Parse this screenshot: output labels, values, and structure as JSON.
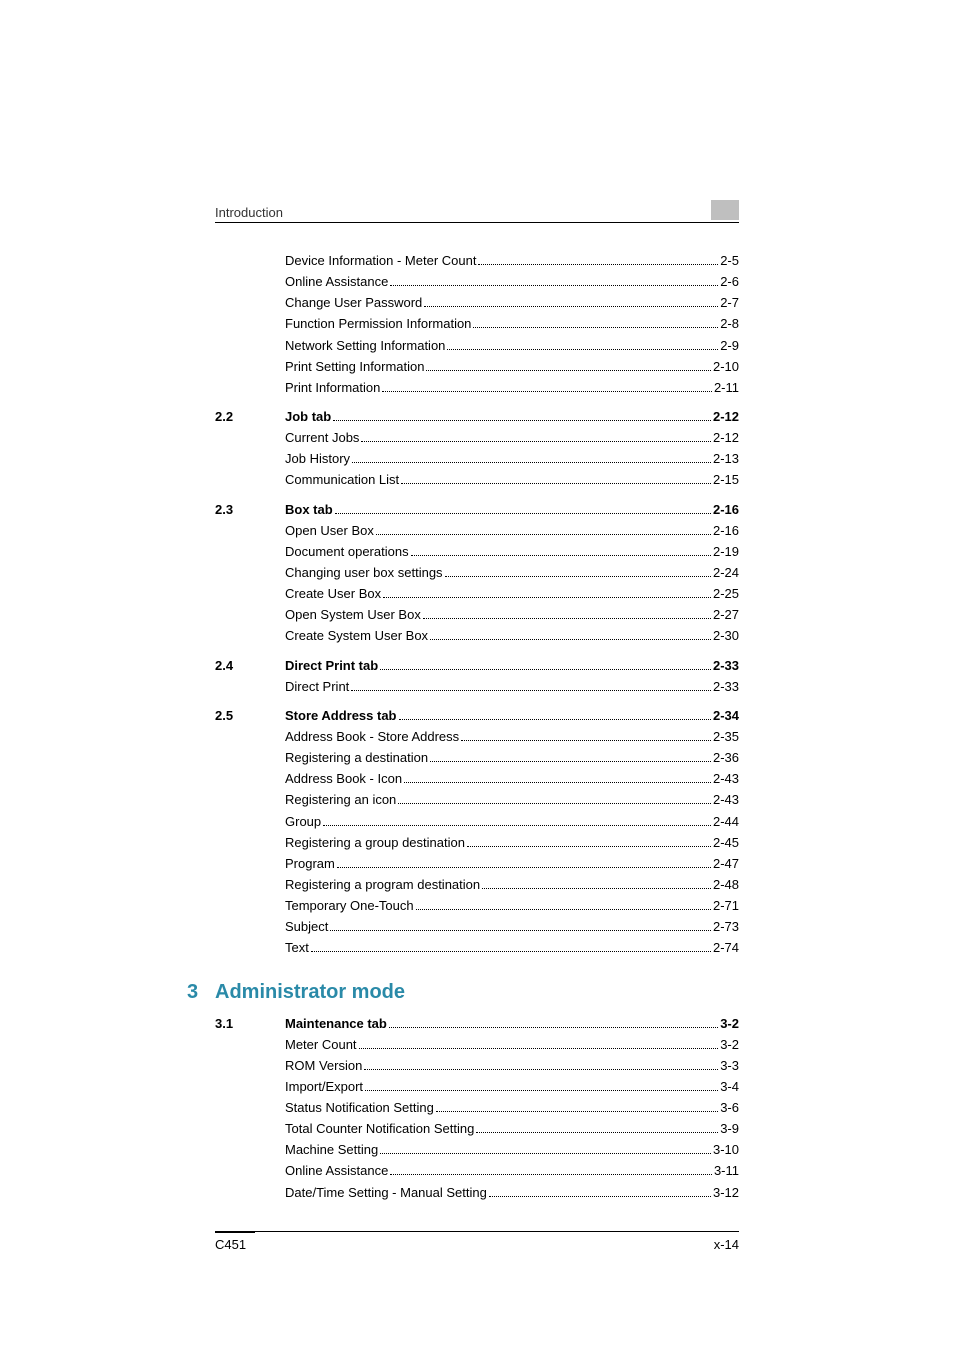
{
  "header": {
    "title": "Introduction"
  },
  "footer": {
    "left": "C451",
    "right": "x-14"
  },
  "chapter": {
    "number": "3",
    "title": "Administrator mode"
  },
  "colors": {
    "header_block": "#bfbfbf",
    "chapter_color": "#2a8aa8",
    "text": "#000000",
    "bg": "#ffffff"
  },
  "fonts": {
    "body_size": 13,
    "chapter_size": 20
  },
  "groups": [
    {
      "section": "",
      "bold": false,
      "gap_before": false,
      "items": [
        {
          "label": "Device Information - Meter Count",
          "page": "2-5"
        },
        {
          "label": "Online Assistance",
          "page": "2-6"
        },
        {
          "label": "Change User Password",
          "page": "2-7"
        },
        {
          "label": "Function Permission Information",
          "page": "2-8"
        },
        {
          "label": "Network Setting Information",
          "page": "2-9"
        },
        {
          "label": "Print Setting Information",
          "page": "2-10"
        },
        {
          "label": "Print Information",
          "page": "2-11"
        }
      ]
    },
    {
      "section": "2.2",
      "bold": true,
      "gap_before": true,
      "head": {
        "label": "Job tab",
        "page": "2-12"
      },
      "items": [
        {
          "label": "Current Jobs",
          "page": "2-12"
        },
        {
          "label": "Job History",
          "page": "2-13"
        },
        {
          "label": "Communication List",
          "page": "2-15"
        }
      ]
    },
    {
      "section": "2.3",
      "bold": true,
      "gap_before": true,
      "head": {
        "label": "Box tab",
        "page": "2-16"
      },
      "items": [
        {
          "label": "Open User Box",
          "page": "2-16"
        },
        {
          "label": "Document operations",
          "page": "2-19"
        },
        {
          "label": "Changing user box settings",
          "page": "2-24"
        },
        {
          "label": "Create User Box",
          "page": "2-25"
        },
        {
          "label": "Open System User Box",
          "page": "2-27"
        },
        {
          "label": "Create System User Box",
          "page": "2-30"
        }
      ]
    },
    {
      "section": "2.4",
      "bold": true,
      "gap_before": true,
      "head": {
        "label": "Direct Print tab",
        "page": "2-33"
      },
      "items": [
        {
          "label": "Direct Print",
          "page": "2-33"
        }
      ]
    },
    {
      "section": "2.5",
      "bold": true,
      "gap_before": true,
      "head": {
        "label": "Store Address tab",
        "page": "2-34"
      },
      "items": [
        {
          "label": "Address Book - Store Address",
          "page": "2-35"
        },
        {
          "label": "Registering a destination",
          "page": "2-36"
        },
        {
          "label": "Address Book - Icon",
          "page": "2-43"
        },
        {
          "label": "Registering an icon",
          "page": "2-43"
        },
        {
          "label": "Group",
          "page": "2-44"
        },
        {
          "label": "Registering a group destination",
          "page": "2-45"
        },
        {
          "label": "Program",
          "page": "2-47"
        },
        {
          "label": "Registering a program destination",
          "page": "2-48"
        },
        {
          "label": "Temporary One-Touch",
          "page": "2-71"
        },
        {
          "label": "Subject",
          "page": "2-73"
        },
        {
          "label": "Text",
          "page": "2-74"
        }
      ]
    }
  ],
  "chapter_groups": [
    {
      "section": "3.1",
      "bold": true,
      "gap_before": false,
      "head": {
        "label": "Maintenance tab",
        "page": "3-2"
      },
      "items": [
        {
          "label": "Meter Count",
          "page": "3-2"
        },
        {
          "label": "ROM Version",
          "page": "3-3"
        },
        {
          "label": "Import/Export",
          "page": "3-4"
        },
        {
          "label": "Status Notification Setting",
          "page": "3-6"
        },
        {
          "label": "Total Counter Notification Setting",
          "page": "3-9"
        },
        {
          "label": "Machine Setting",
          "page": "3-10"
        },
        {
          "label": "Online Assistance",
          "page": "3-11"
        },
        {
          "label": "Date/Time Setting - Manual Setting",
          "page": "3-12"
        }
      ]
    }
  ]
}
